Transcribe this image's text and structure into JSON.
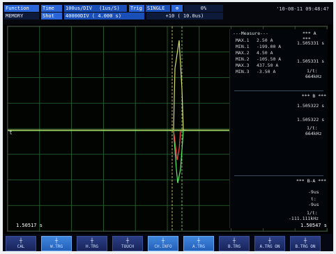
{
  "header": {
    "function_label": "Function",
    "function_value": "MEMORY",
    "time_label": "Time",
    "time_div": "100us/DIV",
    "sample_rate": "(1us/S)",
    "shot_label": "Shot",
    "shot_value": "40000DIV ( 4.000 s)",
    "trig_label": "Trig",
    "trig_mode": "SINGLE",
    "trig_pct": "0%",
    "trig_offset": "+10 ( 10.0us)",
    "datetime": "'10-08-11 09:48:4?"
  },
  "measure": {
    "title": "---Measure---",
    "rows": [
      {
        "label": "MAX.1",
        "value": "2.50 A"
      },
      {
        "label": "MIN.1",
        "value": "-199.00 A"
      },
      {
        "label": "MAX.2",
        "value": "4.50 A"
      },
      {
        "label": "MIN.2",
        "value": "-105.50 A"
      },
      {
        "label": "MAX.3",
        "value": "437.50 A"
      },
      {
        "label": "MIN.3",
        "value": "-3.50 A"
      }
    ]
  },
  "cursor": {
    "a_header": "*** A ***",
    "a_time1": "1.505331 s",
    "a_time2": "1.505331 s",
    "a_freq_label": "1/t:",
    "a_freq": "664kHz",
    "b_header": "*** B ***",
    "b_time1": "1.505322 s",
    "b_time2": "1.505322 s",
    "b_freq_label": "1/t:",
    "b_freq": "664kHz",
    "ba_header": "*** B-A ***",
    "ba_v1": "-9us",
    "ba_t_label": "t:",
    "ba_v2": "-9us",
    "ba_freq_label": "1/t:",
    "ba_freq": "-111.111kHz"
  },
  "plot": {
    "left_time": "1.50517 s",
    "right_time": "1.50547 s",
    "trigger_marker": "t"
  },
  "softkeys": [
    {
      "label": "CAL",
      "active": false
    },
    {
      "label": "W.TRG",
      "active": true
    },
    {
      "label": "H.TRG",
      "active": false
    },
    {
      "label": "TOUCH",
      "active": false
    },
    {
      "label": "CH.INFO",
      "active": true
    },
    {
      "label": "A.TRG",
      "active": true
    },
    {
      "label": "B.TRG",
      "active": false
    },
    {
      "label": "A.TRG ON",
      "active": false
    },
    {
      "label": "B.TRG ON",
      "active": false
    }
  ],
  "colors": {
    "grid": "#2b6b34",
    "grid_center": "#4e8a55",
    "trace_1": "#d8e070",
    "trace_2": "#5ff06a",
    "trace_3": "#ff4a4a",
    "cursor_a": "#e8e070",
    "cursor_b": "#9fe07a"
  },
  "chart_data": {
    "type": "line",
    "series": [
      {
        "values_approx_shape": "spike",
        "min": -199.0,
        "max": 2.5
      },
      {
        "values_approx_shape": "spike",
        "min": -105.5,
        "max": 4.5
      },
      {
        "values_approx_shape": "spike",
        "min": -3.5,
        "max": 437.5
      }
    ]
  }
}
